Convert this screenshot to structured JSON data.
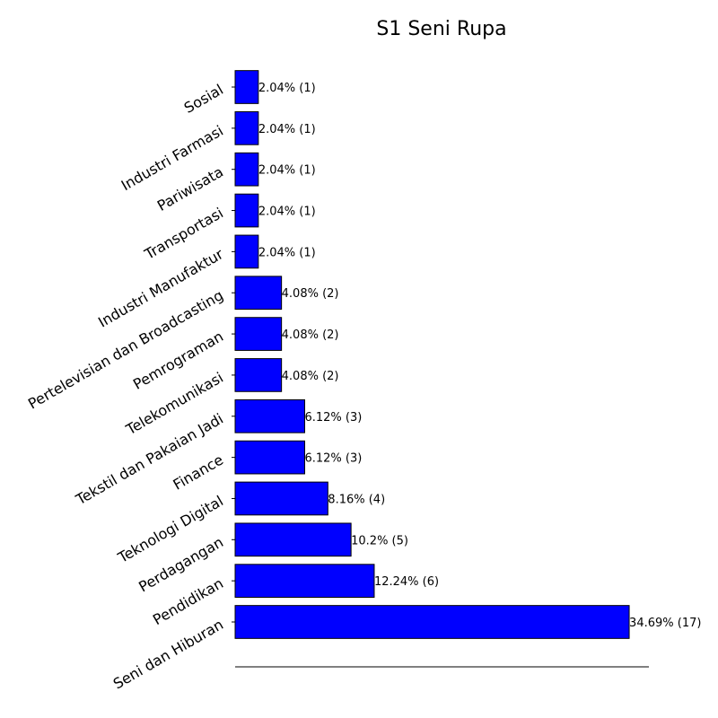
{
  "chart_data": {
    "type": "bar",
    "orientation": "horizontal",
    "title": "S1 Seni Rupa",
    "xlabel": "",
    "ylabel": "",
    "categories": [
      "Seni dan Hiburan",
      "Pendidikan",
      "Perdagangan",
      "Teknologi Digital",
      "Finance",
      "Tekstil dan Pakaian Jadi",
      "Telekomunikasi",
      "Pemrograman",
      "Pertelevisian dan Broadcasting",
      "Industri Manufaktur",
      "Transportasi",
      "Pariwisata",
      "Industri Farmasi",
      "Sosial"
    ],
    "values": [
      17,
      6,
      5,
      4,
      3,
      3,
      2,
      2,
      2,
      1,
      1,
      1,
      1,
      1
    ],
    "value_labels": [
      "34.69% (17)",
      "12.24% (6)",
      "10.2% (5)",
      "8.16% (4)",
      "6.12% (3)",
      "6.12% (3)",
      "4.08% (2)",
      "4.08% (2)",
      "4.08% (2)",
      "2.04% (1)",
      "2.04% (1)",
      "2.04% (1)",
      "2.04% (1)",
      "2.04% (1)"
    ],
    "xlim": [
      0,
      17.85
    ],
    "grid": false,
    "legend": "none",
    "colors": {
      "bar_fill": "#0000ff",
      "bar_edge": "#000000",
      "axis": "#000000",
      "text": "#000000"
    }
  }
}
